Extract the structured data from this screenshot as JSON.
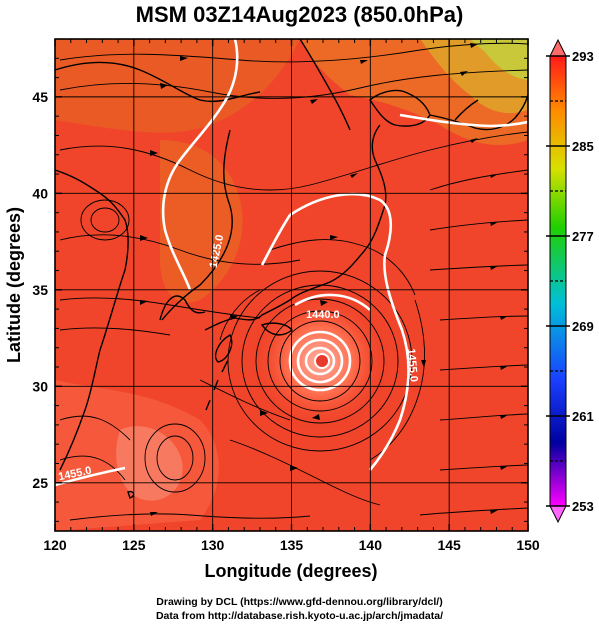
{
  "title": "MSM 03Z14Aug2023 (850.0hPa)",
  "map": {
    "xlabel": "Longitude (degrees)",
    "ylabel": "Latitude  (degrees)",
    "xlim": [
      120,
      150
    ],
    "ylim": [
      22.5,
      48
    ],
    "xticks": [
      "120",
      "125",
      "130",
      "135",
      "140",
      "145",
      "150"
    ],
    "yticks": [
      "25",
      "30",
      "35",
      "40",
      "45"
    ],
    "grid": true,
    "contour_labels": [
      "1425.0",
      "1440.0",
      "1455.0",
      "1455.0",
      "1440.0"
    ],
    "cyclone_center": {
      "lon": 137.0,
      "lat": 32.0
    }
  },
  "colorbar": {
    "ticks": [
      "293",
      "285",
      "277",
      "269",
      "261",
      "253"
    ],
    "min": 253,
    "max": 293
  },
  "credits": {
    "line1": "Drawing by DCL (https://www.gfd-dennou.org/library/dcl/)",
    "line2": "Data from http://database.rish.kyoto-u.ac.jp/arch/jmadata/"
  }
}
